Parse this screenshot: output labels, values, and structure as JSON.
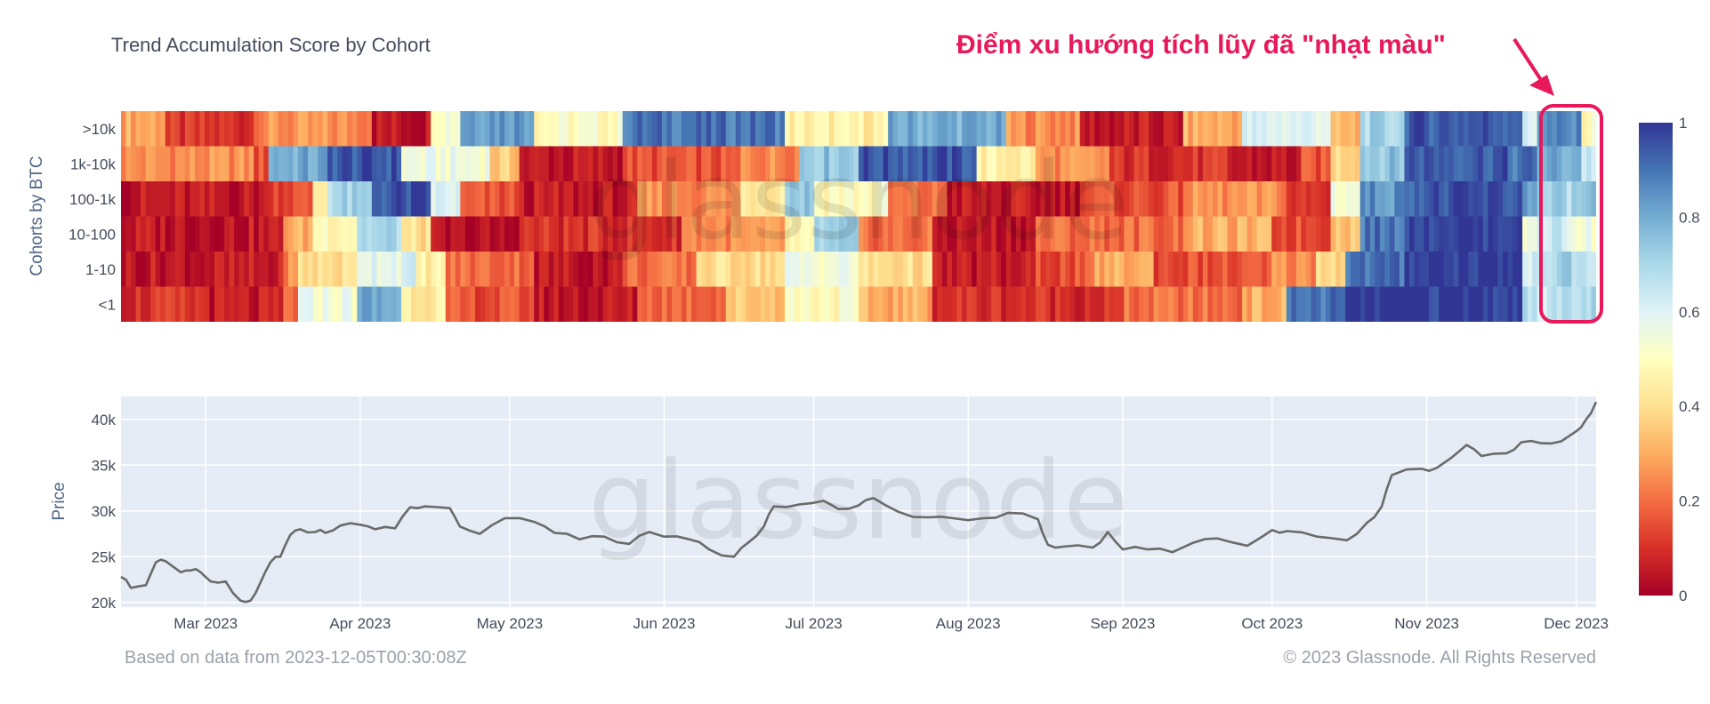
{
  "chart_data": [
    {
      "type": "heatmap",
      "title": "Trend Accumulation Score by Cohort",
      "ylabel": "Cohorts by BTC",
      "rows": [
        ">10k",
        "1k-10k",
        "100-1k",
        "10-100",
        "1-10",
        "<1"
      ],
      "zlim": [
        0,
        1
      ],
      "colorbar_ticks": [
        "1",
        "0.8",
        "0.6",
        "0.4",
        "0.2",
        "0"
      ],
      "colorscale": [
        "#a50026",
        "#d73027",
        "#f46d43",
        "#fdae61",
        "#fee090",
        "#ffffbf",
        "#e0f3f8",
        "#abd9e9",
        "#74add1",
        "#4575b4",
        "#313695"
      ],
      "segments": [
        [
          [
            0.0,
            0.3
          ],
          [
            0.03,
            0.1
          ],
          [
            0.09,
            0.25
          ],
          [
            0.17,
            0.05
          ],
          [
            0.21,
            0.55
          ],
          [
            0.23,
            0.85
          ],
          [
            0.28,
            0.5
          ],
          [
            0.34,
            0.9
          ],
          [
            0.45,
            0.45
          ],
          [
            0.52,
            0.8
          ],
          [
            0.6,
            0.25
          ],
          [
            0.65,
            0.05
          ],
          [
            0.72,
            0.3
          ],
          [
            0.76,
            0.6
          ],
          [
            0.82,
            0.3
          ],
          [
            0.84,
            0.7
          ],
          [
            0.87,
            0.95
          ],
          [
            0.95,
            0.6
          ],
          [
            0.96,
            0.85
          ],
          [
            0.99,
            0.5
          ]
        ],
        [
          [
            0.0,
            0.25
          ],
          [
            0.09,
            0.15
          ],
          [
            0.1,
            0.8
          ],
          [
            0.14,
            0.95
          ],
          [
            0.19,
            0.55
          ],
          [
            0.25,
            0.35
          ],
          [
            0.27,
            0.05
          ],
          [
            0.34,
            0.15
          ],
          [
            0.42,
            0.25
          ],
          [
            0.46,
            0.75
          ],
          [
            0.5,
            0.95
          ],
          [
            0.58,
            0.45
          ],
          [
            0.62,
            0.25
          ],
          [
            0.67,
            0.1
          ],
          [
            0.75,
            0.05
          ],
          [
            0.8,
            0.15
          ],
          [
            0.82,
            0.4
          ],
          [
            0.84,
            0.75
          ],
          [
            0.87,
            0.95
          ],
          [
            0.94,
            0.9
          ],
          [
            0.96,
            0.8
          ],
          [
            0.99,
            0.65
          ]
        ],
        [
          [
            0.0,
            0.05
          ],
          [
            0.1,
            0.15
          ],
          [
            0.13,
            0.45
          ],
          [
            0.14,
            0.7
          ],
          [
            0.17,
            0.95
          ],
          [
            0.21,
            0.6
          ],
          [
            0.23,
            0.15
          ],
          [
            0.27,
            0.05
          ],
          [
            0.35,
            0.25
          ],
          [
            0.42,
            0.45
          ],
          [
            0.45,
            0.75
          ],
          [
            0.47,
            0.5
          ],
          [
            0.52,
            0.2
          ],
          [
            0.56,
            0.05
          ],
          [
            0.65,
            0.15
          ],
          [
            0.72,
            0.25
          ],
          [
            0.79,
            0.1
          ],
          [
            0.82,
            0.55
          ],
          [
            0.84,
            0.85
          ],
          [
            0.87,
            0.95
          ],
          [
            0.95,
            0.85
          ],
          [
            0.96,
            0.7
          ],
          [
            0.99,
            0.75
          ]
        ],
        [
          [
            0.0,
            0.05
          ],
          [
            0.11,
            0.3
          ],
          [
            0.13,
            0.5
          ],
          [
            0.16,
            0.7
          ],
          [
            0.19,
            0.4
          ],
          [
            0.21,
            0.02
          ],
          [
            0.27,
            0.1
          ],
          [
            0.38,
            0.25
          ],
          [
            0.45,
            0.45
          ],
          [
            0.47,
            0.7
          ],
          [
            0.5,
            0.2
          ],
          [
            0.55,
            0.05
          ],
          [
            0.62,
            0.2
          ],
          [
            0.72,
            0.3
          ],
          [
            0.78,
            0.15
          ],
          [
            0.82,
            0.35
          ],
          [
            0.84,
            0.9
          ],
          [
            0.87,
            1.0
          ],
          [
            0.95,
            0.55
          ],
          [
            0.96,
            0.65
          ],
          [
            0.98,
            0.55
          ]
        ],
        [
          [
            0.0,
            0.05
          ],
          [
            0.11,
            0.25
          ],
          [
            0.12,
            0.4
          ],
          [
            0.16,
            0.6
          ],
          [
            0.2,
            0.45
          ],
          [
            0.22,
            0.2
          ],
          [
            0.28,
            0.05
          ],
          [
            0.34,
            0.2
          ],
          [
            0.39,
            0.4
          ],
          [
            0.45,
            0.55
          ],
          [
            0.5,
            0.4
          ],
          [
            0.55,
            0.05
          ],
          [
            0.62,
            0.15
          ],
          [
            0.66,
            0.3
          ],
          [
            0.7,
            0.15
          ],
          [
            0.78,
            0.25
          ],
          [
            0.81,
            0.4
          ],
          [
            0.83,
            0.9
          ],
          [
            0.87,
            1.0
          ],
          [
            0.95,
            0.6
          ],
          [
            0.96,
            0.7
          ],
          [
            0.99,
            0.65
          ]
        ],
        [
          [
            0.0,
            0.1
          ],
          [
            0.06,
            0.05
          ],
          [
            0.11,
            0.2
          ],
          [
            0.12,
            0.55
          ],
          [
            0.16,
            0.8
          ],
          [
            0.19,
            0.45
          ],
          [
            0.22,
            0.15
          ],
          [
            0.28,
            0.05
          ],
          [
            0.35,
            0.2
          ],
          [
            0.41,
            0.35
          ],
          [
            0.45,
            0.5
          ],
          [
            0.5,
            0.3
          ],
          [
            0.55,
            0.1
          ],
          [
            0.68,
            0.2
          ],
          [
            0.76,
            0.3
          ],
          [
            0.79,
            0.9
          ],
          [
            0.83,
            1.0
          ],
          [
            0.95,
            0.7
          ],
          [
            0.96,
            0.65
          ],
          [
            0.99,
            0.7
          ]
        ]
      ]
    },
    {
      "type": "line",
      "ylabel": "Price",
      "xlim": [
        "2023-02-12",
        "2023-12-05"
      ],
      "ylim": [
        19500,
        42500
      ],
      "x_ticks": [
        "Mar 2023",
        "Apr 2023",
        "May 2023",
        "Jun 2023",
        "Jul 2023",
        "Aug 2023",
        "Sep 2023",
        "Oct 2023",
        "Nov 2023",
        "Dec 2023"
      ],
      "y_ticks": [
        "40k",
        "35k",
        "30k",
        "25k",
        "20k"
      ],
      "grid": true,
      "series": [
        {
          "x": [
            "2023-02-12",
            "2023-02-14",
            "2023-02-17",
            "2023-02-19",
            "2023-02-21",
            "2023-02-24",
            "2023-02-26",
            "2023-02-28",
            "2023-03-02",
            "2023-03-05",
            "2023-03-08",
            "2023-03-10",
            "2023-03-12",
            "2023-03-14",
            "2023-03-16",
            "2023-03-18",
            "2023-03-20",
            "2023-03-23",
            "2023-03-25",
            "2023-03-28",
            "2023-04-01",
            "2023-04-04",
            "2023-04-08",
            "2023-04-11",
            "2023-04-14",
            "2023-04-19",
            "2023-04-21",
            "2023-04-25",
            "2023-04-30",
            "2023-05-06",
            "2023-05-10",
            "2023-05-15",
            "2023-05-20",
            "2023-05-25",
            "2023-05-29",
            "2023-06-01",
            "2023-06-06",
            "2023-06-10",
            "2023-06-15",
            "2023-06-18",
            "2023-06-21",
            "2023-06-23",
            "2023-06-28",
            "2023-07-03",
            "2023-07-06",
            "2023-07-10",
            "2023-07-13",
            "2023-07-18",
            "2023-07-24",
            "2023-07-29",
            "2023-08-04",
            "2023-08-09",
            "2023-08-15",
            "2023-08-17",
            "2023-08-20",
            "2023-08-26",
            "2023-08-29",
            "2023-09-01",
            "2023-09-06",
            "2023-09-11",
            "2023-09-15",
            "2023-09-20",
            "2023-09-26",
            "2023-10-01",
            "2023-10-04",
            "2023-10-10",
            "2023-10-16",
            "2023-10-20",
            "2023-10-23",
            "2023-10-25",
            "2023-10-31",
            "2023-11-03",
            "2023-11-09",
            "2023-11-12",
            "2023-11-17",
            "2023-11-20",
            "2023-11-24",
            "2023-11-28",
            "2023-12-01",
            "2023-12-03",
            "2023-12-05"
          ],
          "y": [
            22800,
            21600,
            21900,
            24400,
            24500,
            23300,
            23500,
            23300,
            22300,
            22300,
            20200,
            20200,
            22200,
            24400,
            25000,
            27400,
            28000,
            27700,
            27600,
            28400,
            28500,
            28000,
            28100,
            30400,
            30500,
            30300,
            28300,
            27500,
            29200,
            28800,
            27600,
            26900,
            27200,
            26400,
            27700,
            27200,
            26900,
            25800,
            25000,
            26600,
            28300,
            30500,
            30700,
            31100,
            30200,
            30600,
            31400,
            29900,
            29300,
            29200,
            29200,
            29800,
            29100,
            26300,
            26100,
            26000,
            27700,
            25800,
            25800,
            25500,
            26500,
            27000,
            26200,
            27900,
            27800,
            27200,
            26800,
            28700,
            30500,
            33900,
            34600,
            34700,
            37200,
            36000,
            36300,
            37500,
            37400,
            37600,
            38700,
            40000,
            41900
          ]
        }
      ]
    }
  ],
  "annotation": {
    "text": "Điểm xu hướng tích lũy đã \"nhạt màu\"",
    "color": "#e8195a"
  },
  "watermark": "glassnode",
  "footer": {
    "source": "Based on data from 2023-12-05T00:30:08Z",
    "copyright": "© 2023 Glassnode. All Rights Reserved"
  }
}
